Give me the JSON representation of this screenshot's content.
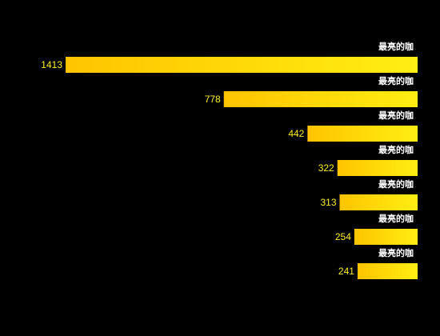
{
  "chart_data": {
    "type": "bar",
    "orientation": "horizontal-right-aligned",
    "categories": [
      "最亮的咖",
      "最亮的咖",
      "最亮的咖",
      "最亮的咖",
      "最亮的咖",
      "最亮的咖",
      "最亮的咖"
    ],
    "values": [
      1413,
      778,
      442,
      322,
      313,
      254,
      241
    ],
    "title": "",
    "xlabel": "",
    "ylabel": "",
    "xlim": [
      0,
      1413
    ],
    "grid": false,
    "legend": "none",
    "colors": {
      "background": "#000000",
      "bar_gradient_start": "#ffc400",
      "bar_gradient_end": "#ffee11",
      "value_label": "#ffee22",
      "category_label": "#ffffff"
    }
  }
}
